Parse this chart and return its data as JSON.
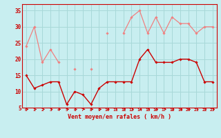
{
  "xlabel": "Vent moyen/en rafales ( km/h )",
  "background_color": "#c8eef0",
  "grid_color": "#a8d8d8",
  "x": [
    0,
    1,
    2,
    3,
    4,
    5,
    6,
    7,
    8,
    9,
    10,
    11,
    12,
    13,
    14,
    15,
    16,
    17,
    18,
    19,
    20,
    21,
    22,
    23
  ],
  "ylim": [
    5,
    37
  ],
  "xlim": [
    -0.5,
    23.5
  ],
  "yticks": [
    5,
    10,
    15,
    20,
    25,
    30,
    35
  ],
  "series": [
    {
      "name": "rafales_line",
      "color": "#f08080",
      "linewidth": 0.9,
      "marker": "D",
      "markersize": 1.8,
      "connect_all": true,
      "values": [
        24,
        30,
        19,
        23,
        19,
        null,
        17,
        null,
        17,
        null,
        28,
        null,
        28,
        33,
        35,
        28,
        33,
        28,
        33,
        31,
        31,
        28,
        30,
        30
      ]
    },
    {
      "name": "rafales_diag1",
      "color": "#f08080",
      "linewidth": 0.8,
      "marker": null,
      "markersize": 0,
      "connect_all": false,
      "values": [
        24,
        null,
        null,
        null,
        null,
        null,
        null,
        null,
        null,
        null,
        null,
        null,
        null,
        null,
        null,
        null,
        null,
        null,
        null,
        null,
        null,
        null,
        null,
        30
      ]
    },
    {
      "name": "rafales_diag2",
      "color": "#f08080",
      "linewidth": 0.8,
      "marker": null,
      "markersize": 0,
      "connect_all": false,
      "values": [
        24,
        null,
        null,
        null,
        null,
        null,
        null,
        null,
        null,
        null,
        null,
        null,
        null,
        null,
        null,
        null,
        null,
        null,
        null,
        null,
        null,
        null,
        30,
        null
      ]
    },
    {
      "name": "rafales_diag3",
      "color": "#f08080",
      "linewidth": 0.8,
      "marker": null,
      "markersize": 0,
      "connect_all": false,
      "values": [
        null,
        null,
        null,
        23,
        null,
        null,
        null,
        null,
        null,
        null,
        null,
        null,
        null,
        null,
        null,
        null,
        null,
        null,
        null,
        null,
        null,
        null,
        null,
        30
      ]
    },
    {
      "name": "rafales_diag4",
      "color": "#f08080",
      "linewidth": 0.8,
      "marker": null,
      "markersize": 0,
      "connect_all": false,
      "values": [
        null,
        null,
        null,
        23,
        null,
        null,
        null,
        null,
        null,
        null,
        null,
        null,
        null,
        null,
        null,
        null,
        null,
        null,
        null,
        null,
        null,
        null,
        30,
        null
      ]
    },
    {
      "name": "vent_line",
      "color": "#cc0000",
      "linewidth": 1.0,
      "marker": "D",
      "markersize": 1.8,
      "connect_all": true,
      "values": [
        15,
        11,
        12,
        13,
        13,
        6,
        10,
        9,
        6,
        11,
        13,
        13,
        13,
        13,
        20,
        23,
        19,
        19,
        19,
        20,
        20,
        19,
        13,
        13
      ]
    },
    {
      "name": "vent_diag1",
      "color": "#cc0000",
      "linewidth": 0.8,
      "marker": null,
      "markersize": 0,
      "connect_all": false,
      "values": [
        15,
        null,
        null,
        null,
        null,
        null,
        null,
        null,
        null,
        null,
        null,
        null,
        null,
        null,
        null,
        null,
        null,
        null,
        null,
        null,
        null,
        null,
        null,
        13
      ]
    },
    {
      "name": "vent_diag2",
      "color": "#cc0000",
      "linewidth": 0.8,
      "marker": null,
      "markersize": 0,
      "connect_all": false,
      "values": [
        15,
        null,
        null,
        null,
        null,
        null,
        null,
        null,
        null,
        null,
        null,
        null,
        null,
        null,
        null,
        null,
        null,
        null,
        null,
        null,
        null,
        19,
        null,
        null
      ]
    },
    {
      "name": "vent_diag3",
      "color": "#cc0000",
      "linewidth": 0.8,
      "marker": null,
      "markersize": 0,
      "connect_all": false,
      "values": [
        15,
        null,
        null,
        null,
        null,
        null,
        null,
        null,
        null,
        null,
        null,
        null,
        null,
        null,
        null,
        null,
        null,
        null,
        null,
        20,
        null,
        null,
        null,
        null
      ]
    }
  ],
  "arrows": {
    "color": "#cc0000",
    "y_data": 4.5
  }
}
